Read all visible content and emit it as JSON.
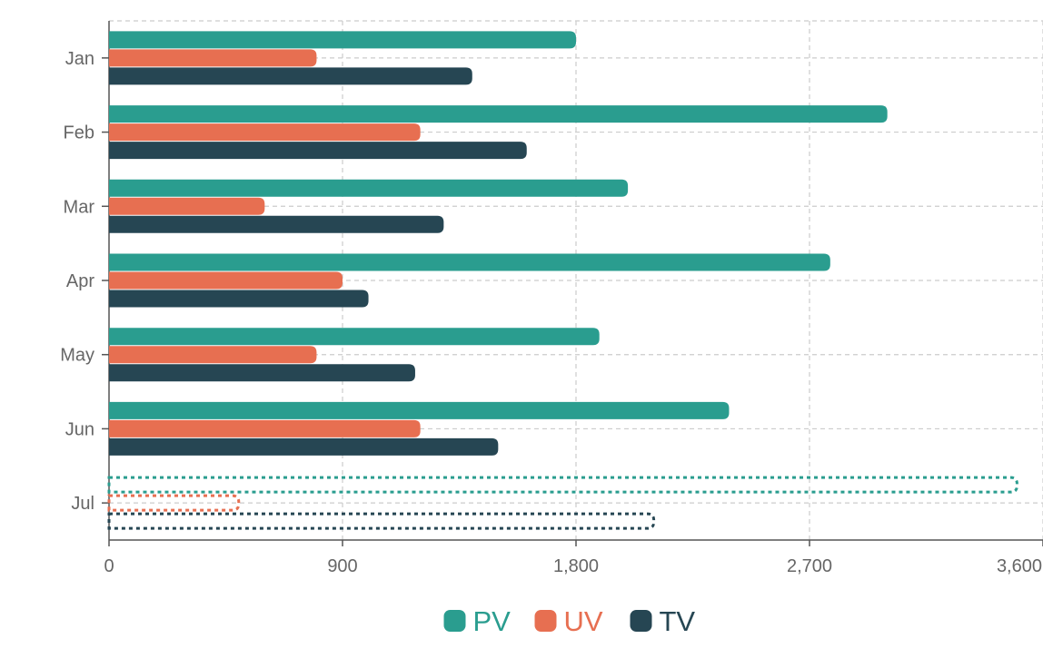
{
  "chart_data": {
    "type": "bar",
    "orientation": "horizontal",
    "categories": [
      "Jan",
      "Feb",
      "Mar",
      "Apr",
      "May",
      "Jun",
      "Jul"
    ],
    "series": [
      {
        "name": "PV",
        "color": "#2a9d8f",
        "values": [
          1800,
          3000,
          2000,
          2780,
          1890,
          2390,
          3500
        ]
      },
      {
        "name": "UV",
        "color": "#e76f51",
        "values": [
          800,
          1200,
          600,
          900,
          800,
          1200,
          500
        ]
      },
      {
        "name": "TV",
        "color": "#264653",
        "values": [
          1400,
          1610,
          1290,
          1000,
          1180,
          1500,
          2100
        ]
      }
    ],
    "projected_category": "Jul",
    "xlim": [
      0,
      3600
    ],
    "x_ticks": [
      "0",
      "900",
      "1,800",
      "2,700",
      "3,600"
    ],
    "x_tick_values": [
      0,
      900,
      1800,
      2700,
      3600
    ],
    "grid": true,
    "legend_position": "bottom"
  }
}
